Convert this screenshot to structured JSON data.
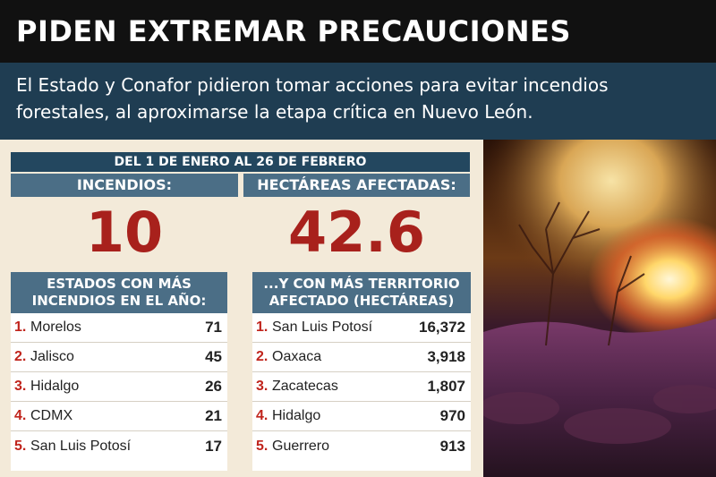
{
  "header": {
    "title": "PIDEN EXTREMAR PRECAUCIONES",
    "subtitle_line1": "El Estado y Conafor pidieron tomar acciones para evitar incendios",
    "subtitle_line2": "forestales, al aproximarse la etapa crítica en Nuevo León."
  },
  "summary": {
    "period": "DEL 1 DE ENERO AL 26 DE FEBRERO",
    "fires_label": "INCENDIOS:",
    "fires_value": "10",
    "hectares_label": "HECTÁREAS AFECTADAS:",
    "hectares_value": "42.6"
  },
  "states_fires": {
    "header_line1": "ESTADOS CON MÁS",
    "header_line2": "INCENDIOS EN EL AÑO:",
    "rows": [
      {
        "rank": "1.",
        "name": "Morelos",
        "value": "71"
      },
      {
        "rank": "2.",
        "name": "Jalisco",
        "value": "45"
      },
      {
        "rank": "3.",
        "name": "Hidalgo",
        "value": "26"
      },
      {
        "rank": "4.",
        "name": "CDMX",
        "value": "21"
      },
      {
        "rank": "5.",
        "name": "San Luis Potosí",
        "value": "17"
      }
    ]
  },
  "states_territory": {
    "header_line1": "...Y CON MÁS TERRITORIO",
    "header_line2": "AFECTADO (HECTÁREAS)",
    "rows": [
      {
        "rank": "1.",
        "name": "San Luis Potosí",
        "value": "16,372"
      },
      {
        "rank": "2.",
        "name": "Oaxaca",
        "value": "3,918"
      },
      {
        "rank": "3.",
        "name": "Zacatecas",
        "value": "1,807"
      },
      {
        "rank": "4.",
        "name": "Hidalgo",
        "value": "970"
      },
      {
        "rank": "5.",
        "name": "Guerrero",
        "value": "913"
      }
    ]
  },
  "colors": {
    "title_bg": "#111111",
    "subtitle_bg": "#1f3d52",
    "band_dark": "#23475f",
    "band_light": "#4b6e86",
    "accent_red": "#a8211c",
    "cream": "#f3ead9"
  }
}
